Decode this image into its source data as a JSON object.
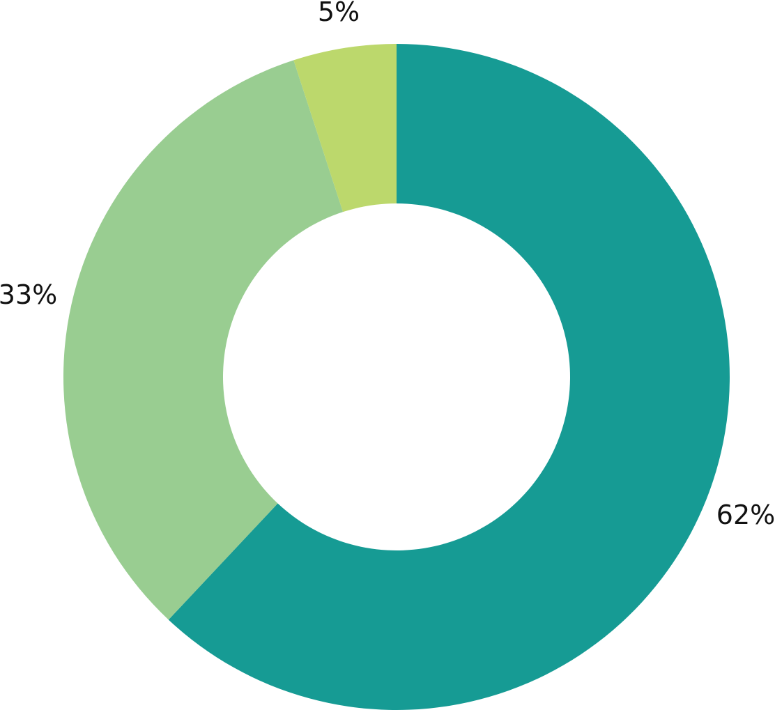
{
  "chart_data": {
    "type": "pie",
    "variant": "donut",
    "title": "",
    "legend": "none",
    "start_angle_deg": 0,
    "direction": "clockwise",
    "slices": [
      {
        "label": "62%",
        "value": 62,
        "color": "#169b94"
      },
      {
        "label": "33%",
        "value": 33,
        "color": "#99cd91"
      },
      {
        "label": "5%",
        "value": 5,
        "color": "#bcd86c"
      }
    ]
  }
}
